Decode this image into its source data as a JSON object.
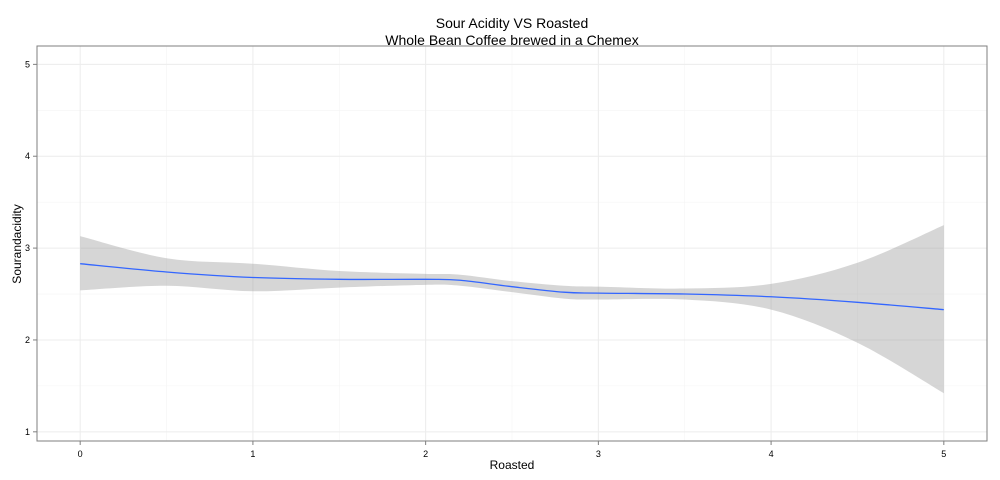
{
  "chart_data": {
    "type": "line",
    "title": "Sour Acidity VS Roasted",
    "subtitle": "Whole Bean Coffee brewed in a Chemex",
    "xlabel": "Roasted",
    "ylabel": "Sourandacidity",
    "xlim": [
      -0.25,
      5.25
    ],
    "ylim": [
      0.9,
      5.2
    ],
    "x_ticks": [
      "0",
      "1",
      "2",
      "3",
      "4",
      "5"
    ],
    "y_ticks": [
      "1",
      "2",
      "3",
      "4",
      "5"
    ],
    "x_tick_values": [
      0,
      1,
      2,
      3,
      4,
      5
    ],
    "y_tick_values": [
      1,
      2,
      3,
      4,
      5
    ],
    "grid": true,
    "series": [
      {
        "color": "#3366FF",
        "band_color": "#999999",
        "points": [
          {
            "x": 0.0,
            "y": 2.83,
            "lo": 2.54,
            "hi": 3.13
          },
          {
            "x": 0.5,
            "y": 2.74,
            "lo": 2.59,
            "hi": 2.89
          },
          {
            "x": 1.0,
            "y": 2.68,
            "lo": 2.53,
            "hi": 2.83
          },
          {
            "x": 1.5,
            "y": 2.66,
            "lo": 2.57,
            "hi": 2.75
          },
          {
            "x": 2.0,
            "y": 2.66,
            "lo": 2.6,
            "hi": 2.72
          },
          {
            "x": 2.2,
            "y": 2.65,
            "lo": 2.59,
            "hi": 2.71
          },
          {
            "x": 2.5,
            "y": 2.58,
            "lo": 2.52,
            "hi": 2.64
          },
          {
            "x": 2.8,
            "y": 2.52,
            "lo": 2.45,
            "hi": 2.59
          },
          {
            "x": 3.0,
            "y": 2.51,
            "lo": 2.44,
            "hi": 2.58
          },
          {
            "x": 3.5,
            "y": 2.5,
            "lo": 2.44,
            "hi": 2.56
          },
          {
            "x": 4.0,
            "y": 2.47,
            "lo": 2.33,
            "hi": 2.61
          },
          {
            "x": 4.5,
            "y": 2.41,
            "lo": 1.97,
            "hi": 2.84
          },
          {
            "x": 5.0,
            "y": 2.33,
            "lo": 1.42,
            "hi": 3.25
          }
        ]
      }
    ]
  }
}
